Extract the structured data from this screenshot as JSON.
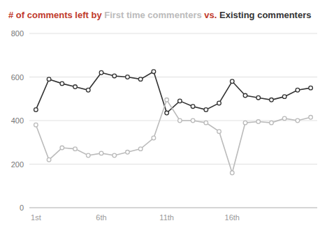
{
  "chart_data": {
    "type": "line",
    "title": "# of comments left by First time commenters vs. Existing commenters",
    "title_color": "#c0392b",
    "categories": [
      "1st",
      null,
      null,
      null,
      null,
      "6th",
      null,
      null,
      null,
      null,
      "11th",
      null,
      null,
      null,
      null,
      "16th",
      null,
      null,
      null,
      null,
      null,
      null
    ],
    "series": [
      {
        "name": "Existing commenters",
        "color": "#333333",
        "marker": "circle",
        "values": [
          450,
          590,
          570,
          555,
          540,
          620,
          605,
          600,
          590,
          625,
          435,
          490,
          465,
          450,
          480,
          580,
          515,
          505,
          495,
          510,
          540,
          550
        ]
      },
      {
        "name": "First time commenters",
        "color": "#bbbbbb",
        "marker": "circle",
        "values": [
          380,
          220,
          275,
          270,
          240,
          250,
          240,
          255,
          270,
          320,
          495,
          400,
          400,
          390,
          350,
          160,
          390,
          395,
          390,
          410,
          400,
          415
        ]
      }
    ],
    "ylim": [
      0,
      800
    ],
    "yticks": [
      0,
      200,
      400,
      600,
      800
    ],
    "grid": true
  }
}
